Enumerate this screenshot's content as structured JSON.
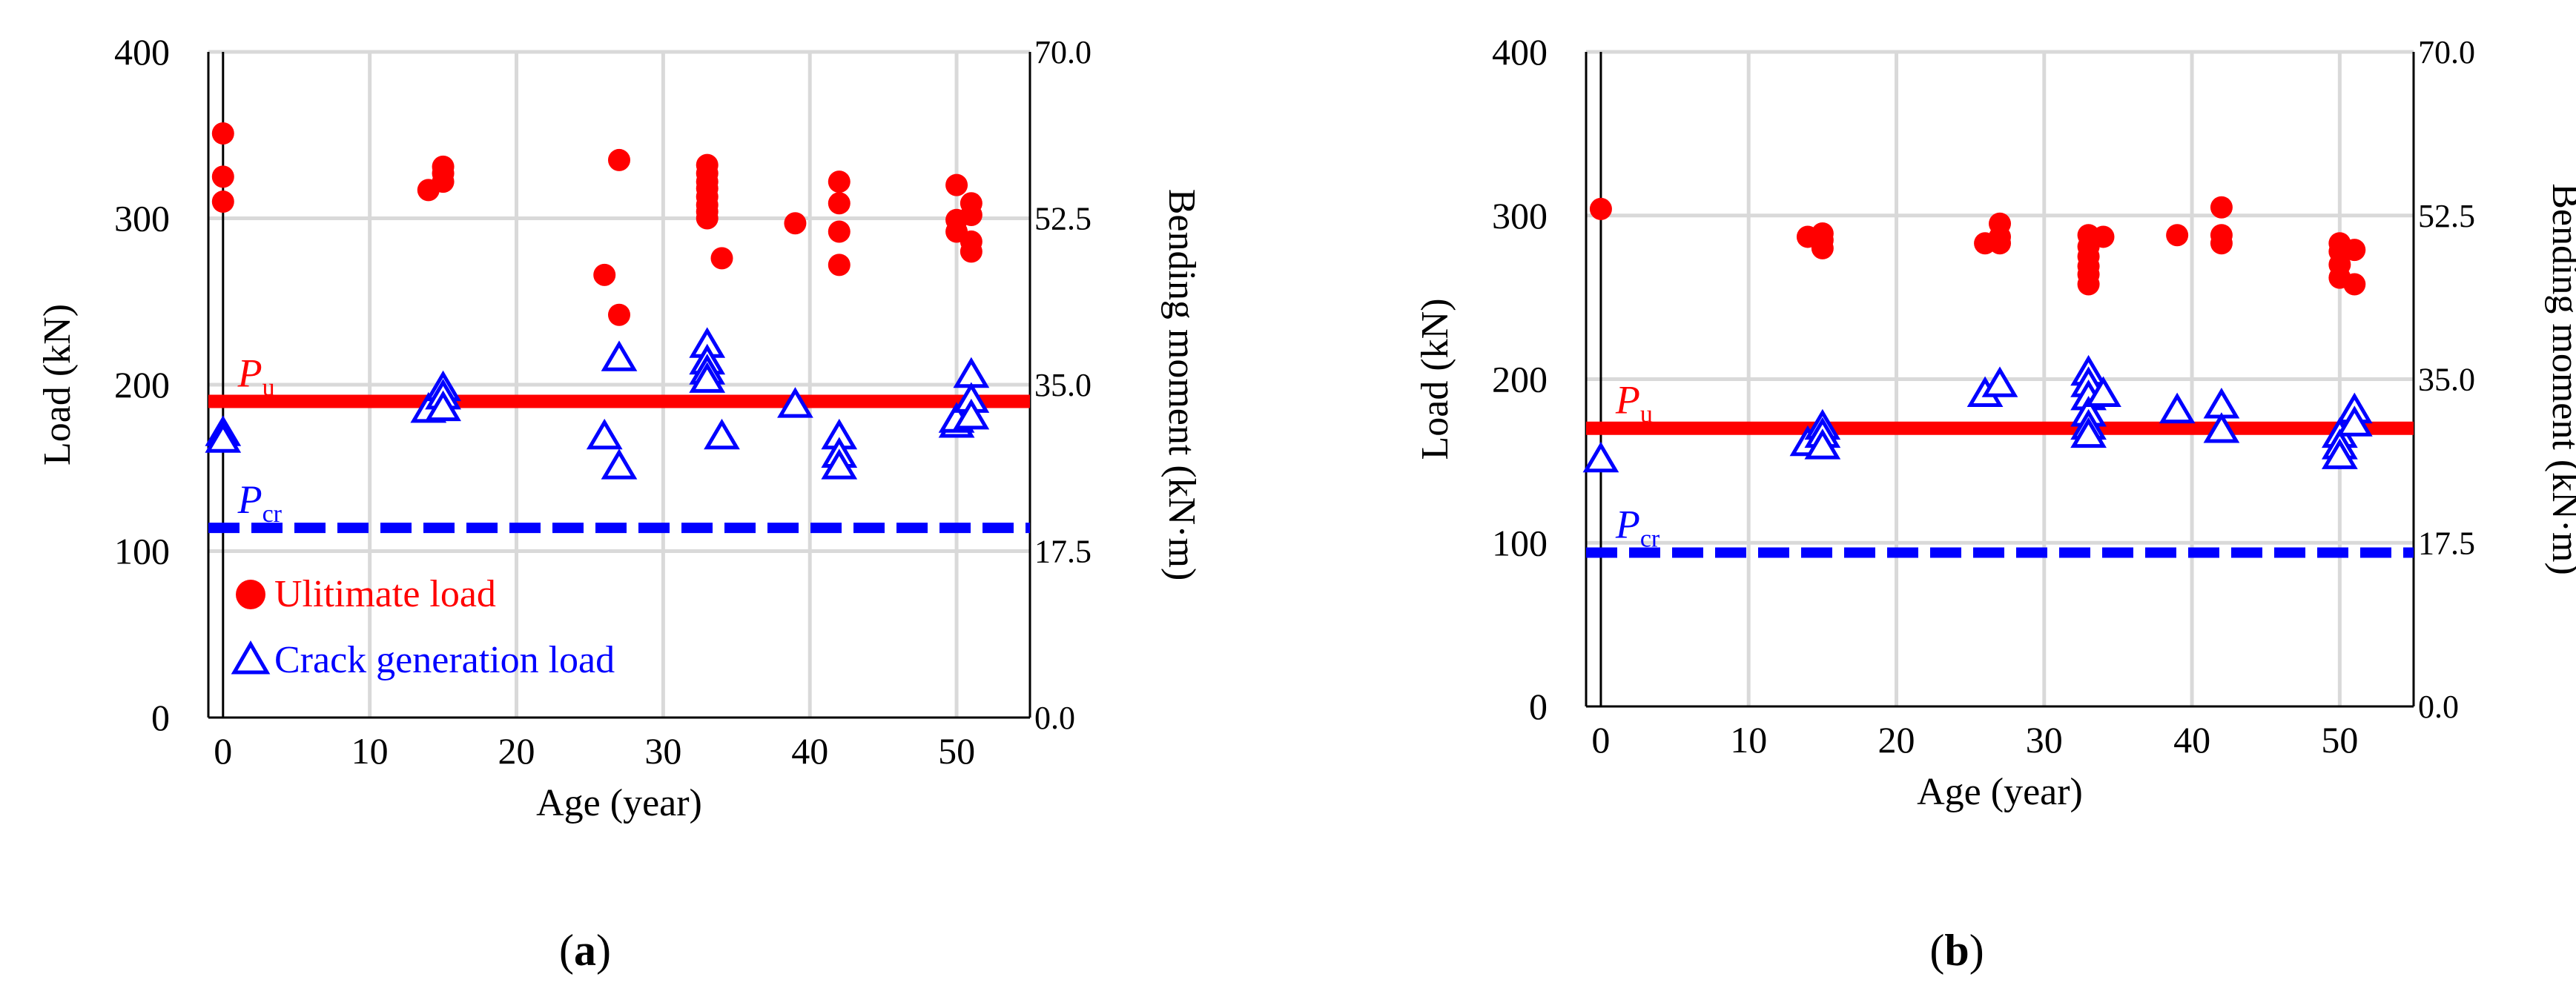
{
  "colors": {
    "ultimate": "#ff0000",
    "crack": "#0000ff",
    "grid": "#d9d9d9",
    "axis": "#000000"
  },
  "chart_data": [
    {
      "panel_label": {
        "pre": "(",
        "letter": "a",
        "post": ")"
      },
      "type": "scatter",
      "xlabel": "Age (year)",
      "ylabel": "Load (kN)",
      "y2label": "Bending moment (kN·m)",
      "xlim": [
        -1,
        55
      ],
      "ylim": [
        0,
        400
      ],
      "y2lim": [
        0,
        70
      ],
      "xticks": [
        "0",
        "10",
        "20",
        "30",
        "40",
        "50"
      ],
      "xtick_values": [
        0,
        10,
        20,
        30,
        40,
        50
      ],
      "yticks": [
        "0",
        "100",
        "200",
        "300",
        "400"
      ],
      "ytick_values": [
        0,
        100,
        200,
        300,
        400
      ],
      "y2ticks": [
        "0.0",
        "17.5",
        "35.0",
        "52.5",
        "70.0"
      ],
      "y2tick_values": [
        0,
        17.5,
        35,
        52.5,
        70
      ],
      "grid": true,
      "legend": {
        "placement": "bottom-left",
        "items": [
          {
            "label": "Ulitimate load",
            "marker": "circle",
            "color": "#ff0000"
          },
          {
            "label": "Crack generation load",
            "marker": "triangle",
            "color": "#0000ff"
          }
        ]
      },
      "reference_lines": [
        {
          "name": "P",
          "sub": "u",
          "y": 190,
          "style": "solid",
          "color": "#ff0000"
        },
        {
          "name": "P",
          "sub": "cr",
          "y": 114,
          "style": "dashed",
          "color": "#0000ff"
        }
      ],
      "series": [
        {
          "name": "Ulitimate load",
          "marker": "circle",
          "color": "#ff0000",
          "points": [
            [
              0,
              351
            ],
            [
              0,
              325
            ],
            [
              0,
              310
            ],
            [
              14,
              317
            ],
            [
              15,
              331
            ],
            [
              15,
              327
            ],
            [
              15,
              322
            ],
            [
              26,
              266
            ],
            [
              27,
              335
            ],
            [
              27,
              242
            ],
            [
              33,
              332
            ],
            [
              33,
              327
            ],
            [
              33,
              322
            ],
            [
              33,
              318
            ],
            [
              33,
              313
            ],
            [
              33,
              308
            ],
            [
              33,
              304
            ],
            [
              33,
              300
            ],
            [
              34,
              276
            ],
            [
              39,
              297
            ],
            [
              42,
              322
            ],
            [
              42,
              309
            ],
            [
              42,
              292
            ],
            [
              42,
              272
            ],
            [
              50,
              320
            ],
            [
              50,
              299
            ],
            [
              50,
              292
            ],
            [
              51,
              309
            ],
            [
              51,
              302
            ],
            [
              51,
              286
            ],
            [
              51,
              280
            ]
          ]
        },
        {
          "name": "Crack generation load",
          "marker": "triangle",
          "color": "#0000ff",
          "points": [
            [
              0,
              170
            ],
            [
              0,
              166
            ],
            [
              14,
              184
            ],
            [
              15,
              197
            ],
            [
              15,
              192
            ],
            [
              15,
              185
            ],
            [
              26,
              168
            ],
            [
              27,
              215
            ],
            [
              27,
              150
            ],
            [
              33,
              223
            ],
            [
              33,
              213
            ],
            [
              33,
              207
            ],
            [
              33,
              202
            ],
            [
              34,
              168
            ],
            [
              39,
              187
            ],
            [
              42,
              168
            ],
            [
              42,
              157
            ],
            [
              42,
              150
            ],
            [
              50,
              175
            ],
            [
              50,
              178
            ],
            [
              51,
              205
            ],
            [
              51,
              190
            ],
            [
              51,
              180
            ]
          ]
        }
      ]
    },
    {
      "panel_label": {
        "pre": "(",
        "letter": "b",
        "post": ")"
      },
      "type": "scatter",
      "xlabel": "Age (year)",
      "ylabel": "Load (kN)",
      "y2label": "Bending moment (kN·m)",
      "xlim": [
        -1,
        55
      ],
      "ylim": [
        0,
        400
      ],
      "y2lim": [
        0,
        70
      ],
      "xticks": [
        "0",
        "10",
        "20",
        "30",
        "40",
        "50"
      ],
      "xtick_values": [
        0,
        10,
        20,
        30,
        40,
        50
      ],
      "yticks": [
        "0",
        "100",
        "200",
        "300",
        "400"
      ],
      "ytick_values": [
        0,
        100,
        200,
        300,
        400
      ],
      "y2ticks": [
        "0.0",
        "17.5",
        "35.0",
        "52.5",
        "70.0"
      ],
      "y2tick_values": [
        0,
        17.5,
        35,
        52.5,
        70
      ],
      "grid": true,
      "reference_lines": [
        {
          "name": "P",
          "sub": "u",
          "y": 170,
          "style": "solid",
          "color": "#ff0000"
        },
        {
          "name": "P",
          "sub": "cr",
          "y": 94,
          "style": "dashed",
          "color": "#0000ff"
        }
      ],
      "series": [
        {
          "name": "Ulitimate load",
          "marker": "circle",
          "color": "#ff0000",
          "points": [
            [
              0,
              304
            ],
            [
              14,
              287
            ],
            [
              15,
              289
            ],
            [
              15,
              285
            ],
            [
              15,
              280
            ],
            [
              26,
              283
            ],
            [
              27,
              295
            ],
            [
              27,
              287
            ],
            [
              27,
              283
            ],
            [
              33,
              288
            ],
            [
              33,
              281
            ],
            [
              33,
              275
            ],
            [
              33,
              269
            ],
            [
              33,
              264
            ],
            [
              33,
              258
            ],
            [
              34,
              287
            ],
            [
              39,
              288
            ],
            [
              42,
              305
            ],
            [
              42,
              288
            ],
            [
              42,
              283
            ],
            [
              50,
              283
            ],
            [
              50,
              278
            ],
            [
              50,
              270
            ],
            [
              50,
              262
            ],
            [
              51,
              279
            ],
            [
              51,
              258
            ]
          ]
        },
        {
          "name": "Crack generation load",
          "marker": "triangle",
          "color": "#0000ff",
          "points": [
            [
              0,
              150
            ],
            [
              14,
              160
            ],
            [
              15,
              170
            ],
            [
              15,
              165
            ],
            [
              15,
              158
            ],
            [
              26,
              190
            ],
            [
              27,
              196
            ],
            [
              33,
              203
            ],
            [
              33,
              196
            ],
            [
              33,
              188
            ],
            [
              33,
              178
            ],
            [
              33,
              170
            ],
            [
              33,
              165
            ],
            [
              34,
              190
            ],
            [
              39,
              180
            ],
            [
              42,
              183
            ],
            [
              42,
              168
            ],
            [
              50,
              165
            ],
            [
              50,
              158
            ],
            [
              50,
              152
            ],
            [
              51,
              180
            ],
            [
              51,
              172
            ]
          ]
        }
      ]
    }
  ]
}
